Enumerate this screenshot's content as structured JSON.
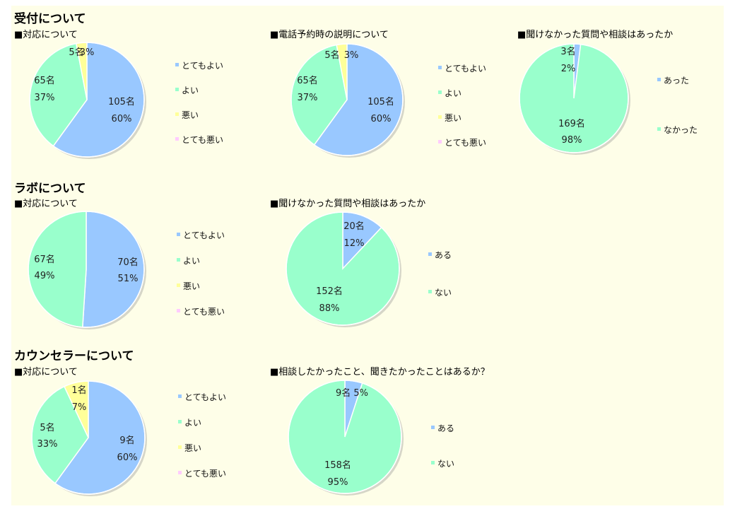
{
  "sections": [
    {
      "title": "受付について",
      "charts": [
        0,
        1,
        2
      ]
    },
    {
      "title": "ラボについて",
      "charts": [
        3,
        4
      ]
    },
    {
      "title": "カウンセラーについて",
      "charts": [
        5,
        6
      ]
    }
  ],
  "colors": {
    "blue": "#99c8ff",
    "green": "#99ffcc",
    "yellow": "#ffff99",
    "pink": "#ffccff",
    "panel_bg": "#fefee8"
  },
  "chart_data": [
    {
      "type": "pie",
      "title": "■対応について",
      "slices": [
        {
          "name": "とてもよい",
          "count_label": "105名",
          "percent_label": "60%",
          "value": 60,
          "color": "#99c8ff"
        },
        {
          "name": "よい",
          "count_label": "65名",
          "percent_label": "37%",
          "value": 37,
          "color": "#99ffcc"
        },
        {
          "name": "悪い",
          "count_label": "5名",
          "percent_label": "3%",
          "value": 3,
          "color": "#ffff99"
        },
        {
          "name": "とても悪い",
          "count_label": "",
          "percent_label": "",
          "value": 0,
          "color": "#ffccff"
        }
      ],
      "legend_position": "right"
    },
    {
      "type": "pie",
      "title": "■電話予約時の説明について",
      "slices": [
        {
          "name": "とてもよい",
          "count_label": "105名",
          "percent_label": "60%",
          "value": 60,
          "color": "#99c8ff"
        },
        {
          "name": "よい",
          "count_label": "65名",
          "percent_label": "37%",
          "value": 37,
          "color": "#99ffcc"
        },
        {
          "name": "悪い",
          "count_label": "5名",
          "percent_label": "3%",
          "value": 3,
          "color": "#ffff99"
        },
        {
          "name": "とても悪い",
          "count_label": "",
          "percent_label": "",
          "value": 0,
          "color": "#ffccff"
        }
      ],
      "legend_position": "right"
    },
    {
      "type": "pie",
      "title": "■聞けなかった質問や相談はあったか",
      "slices": [
        {
          "name": "あった",
          "count_label": "3名",
          "percent_label": "2%",
          "value": 2,
          "color": "#99c8ff"
        },
        {
          "name": "なかった",
          "count_label": "169名",
          "percent_label": "98%",
          "value": 98,
          "color": "#99ffcc"
        }
      ],
      "legend_position": "right"
    },
    {
      "type": "pie",
      "title": "■対応について",
      "slices": [
        {
          "name": "とてもよい",
          "count_label": "70名",
          "percent_label": "51%",
          "value": 51,
          "color": "#99c8ff"
        },
        {
          "name": "よい",
          "count_label": "67名",
          "percent_label": "49%",
          "value": 49,
          "color": "#99ffcc"
        },
        {
          "name": "悪い",
          "count_label": "",
          "percent_label": "",
          "value": 0,
          "color": "#ffff99"
        },
        {
          "name": "とても悪い",
          "count_label": "",
          "percent_label": "",
          "value": 0,
          "color": "#ffccff"
        }
      ],
      "legend_position": "right"
    },
    {
      "type": "pie",
      "title": "■聞けなかった質問や相談はあったか",
      "slices": [
        {
          "name": "ある",
          "count_label": "20名",
          "percent_label": "12%",
          "value": 12,
          "color": "#99c8ff"
        },
        {
          "name": "ない",
          "count_label": "152名",
          "percent_label": "88%",
          "value": 88,
          "color": "#99ffcc"
        }
      ],
      "legend_position": "right"
    },
    {
      "type": "pie",
      "title": "■対応について",
      "slices": [
        {
          "name": "とてもよい",
          "count_label": "9名",
          "percent_label": "60%",
          "value": 60,
          "color": "#99c8ff"
        },
        {
          "name": "よい",
          "count_label": "5名",
          "percent_label": "33%",
          "value": 33,
          "color": "#99ffcc"
        },
        {
          "name": "悪い",
          "count_label": "1名",
          "percent_label": "7%",
          "value": 7,
          "color": "#ffff99"
        },
        {
          "name": "とても悪い",
          "count_label": "",
          "percent_label": "",
          "value": 0,
          "color": "#ffccff"
        }
      ],
      "legend_position": "right"
    },
    {
      "type": "pie",
      "title": "■相談したかったこと、聞きたかったことはあるか？",
      "slices": [
        {
          "name": "ある",
          "count_label": "9名",
          "percent_label": "5%",
          "value": 5,
          "color": "#99c8ff"
        },
        {
          "name": "ない",
          "count_label": "158名",
          "percent_label": "95%",
          "value": 95,
          "color": "#99ffcc"
        }
      ],
      "legend_position": "right"
    }
  ]
}
